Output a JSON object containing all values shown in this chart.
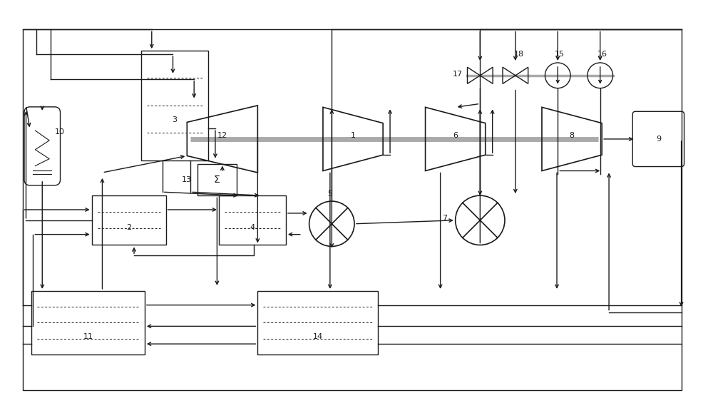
{
  "bg_color": "#ffffff",
  "line_color": "#1a1a1a",
  "shaft_color": "#aaaaaa",
  "fig_width": 10.0,
  "fig_height": 5.79,
  "dpi": 100
}
